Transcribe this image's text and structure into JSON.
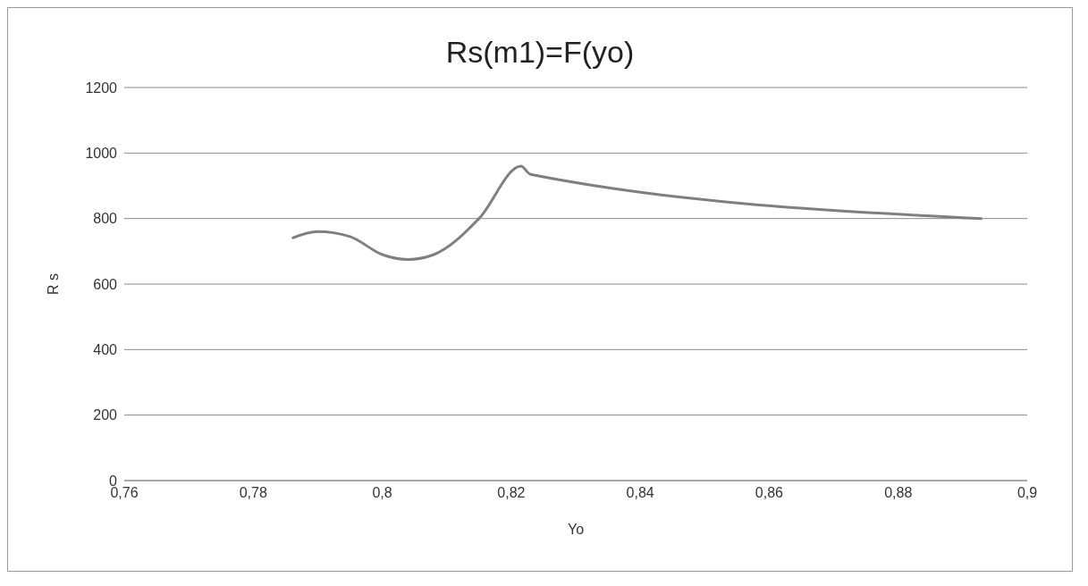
{
  "chart_data": {
    "type": "line",
    "title": "Rs(m1)=F(yo)",
    "xlabel": "Yo",
    "ylabel": "R s",
    "x": [
      0.786,
      0.79,
      0.795,
      0.8,
      0.804,
      0.808,
      0.815,
      0.8215,
      0.823,
      0.893
    ],
    "series": [
      {
        "color": "#7f7f7f",
        "values": [
          740,
          760,
          745,
          690,
          675,
          690,
          800,
          960,
          935,
          800
        ]
      }
    ],
    "xlim": [
      0.76,
      0.9
    ],
    "xticks": [
      {
        "value": 0.76,
        "label": "0,76"
      },
      {
        "value": 0.78,
        "label": "0,78"
      },
      {
        "value": 0.8,
        "label": "0,8"
      },
      {
        "value": 0.82,
        "label": "0,82"
      },
      {
        "value": 0.84,
        "label": "0,84"
      },
      {
        "value": 0.86,
        "label": "0,86"
      },
      {
        "value": 0.88,
        "label": "0,88"
      },
      {
        "value": 0.9,
        "label": "0,9"
      }
    ],
    "ylim": [
      0,
      1200
    ],
    "yticks": [
      0,
      200,
      400,
      600,
      800,
      1000,
      1200
    ],
    "grid": "y",
    "marker": "none",
    "line_style": "solid"
  }
}
